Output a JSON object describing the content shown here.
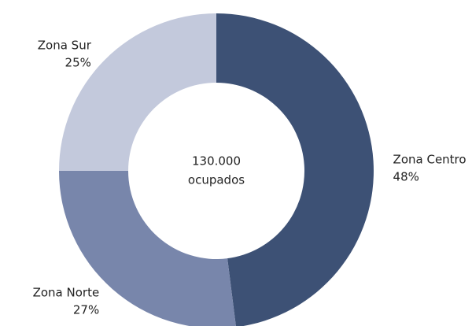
{
  "chart_data": {
    "type": "donut",
    "categories": [
      "Zona Centro",
      "Zona Norte",
      "Zona Sur"
    ],
    "values": [
      48,
      27,
      25
    ],
    "value_labels": [
      "48%",
      "27%",
      "25%"
    ],
    "colors": [
      "#3d5175",
      "#7886ab",
      "#c3c9dc"
    ],
    "center_text": [
      "130.000",
      "ocupados"
    ]
  }
}
